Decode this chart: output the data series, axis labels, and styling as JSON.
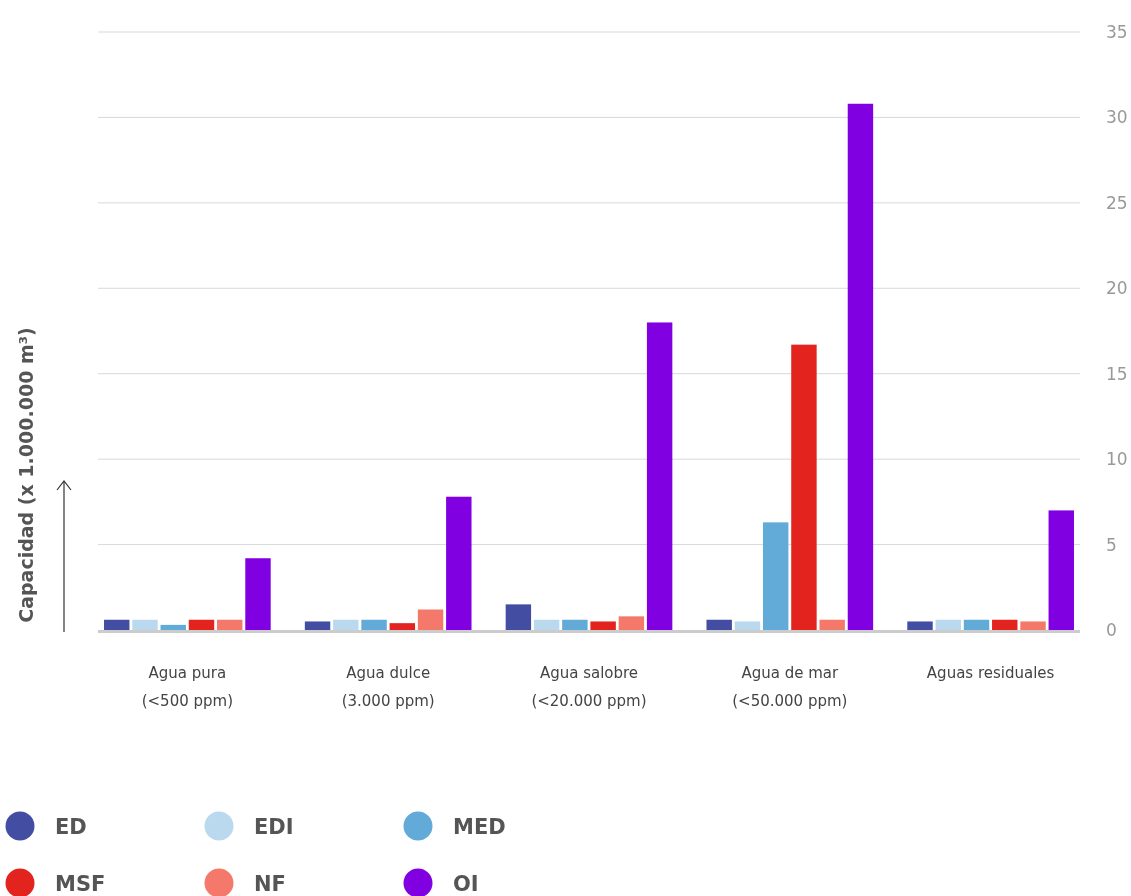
{
  "chart_data": {
    "type": "bar",
    "ylabel": "Capacidad (x 1.000.000 m³)",
    "categories": [
      "Agua pura\n(<500 ppm)",
      "Agua dulce\n(3.000 ppm)",
      "Agua salobre\n(<20.000 ppm)",
      "Agua de mar\n(<50.000 ppm)",
      "Aguas residuales"
    ],
    "series": [
      {
        "name": "ED",
        "color": "#434ea3",
        "values": [
          0.6,
          0.5,
          1.5,
          0.6,
          0.5
        ]
      },
      {
        "name": "EDI",
        "color": "#bad9ee",
        "values": [
          0.6,
          0.6,
          0.6,
          0.5,
          0.6
        ]
      },
      {
        "name": "MED",
        "color": "#62aad7",
        "values": [
          0.3,
          0.6,
          0.6,
          6.3,
          0.6
        ]
      },
      {
        "name": "MSF",
        "color": "#e2231e",
        "values": [
          0.6,
          0.4,
          0.5,
          16.7,
          0.6
        ]
      },
      {
        "name": "NF",
        "color": "#f5796b",
        "values": [
          0.6,
          1.2,
          0.8,
          0.6,
          0.5
        ]
      },
      {
        "name": "OI",
        "color": "#8000e2",
        "values": [
          4.2,
          7.8,
          18.0,
          30.8,
          7.0
        ]
      }
    ],
    "ylim": [
      0,
      35
    ],
    "yticks": [
      0,
      5,
      10,
      15,
      20,
      25,
      30,
      35
    ],
    "grid": "y",
    "legend": "bottom left"
  }
}
